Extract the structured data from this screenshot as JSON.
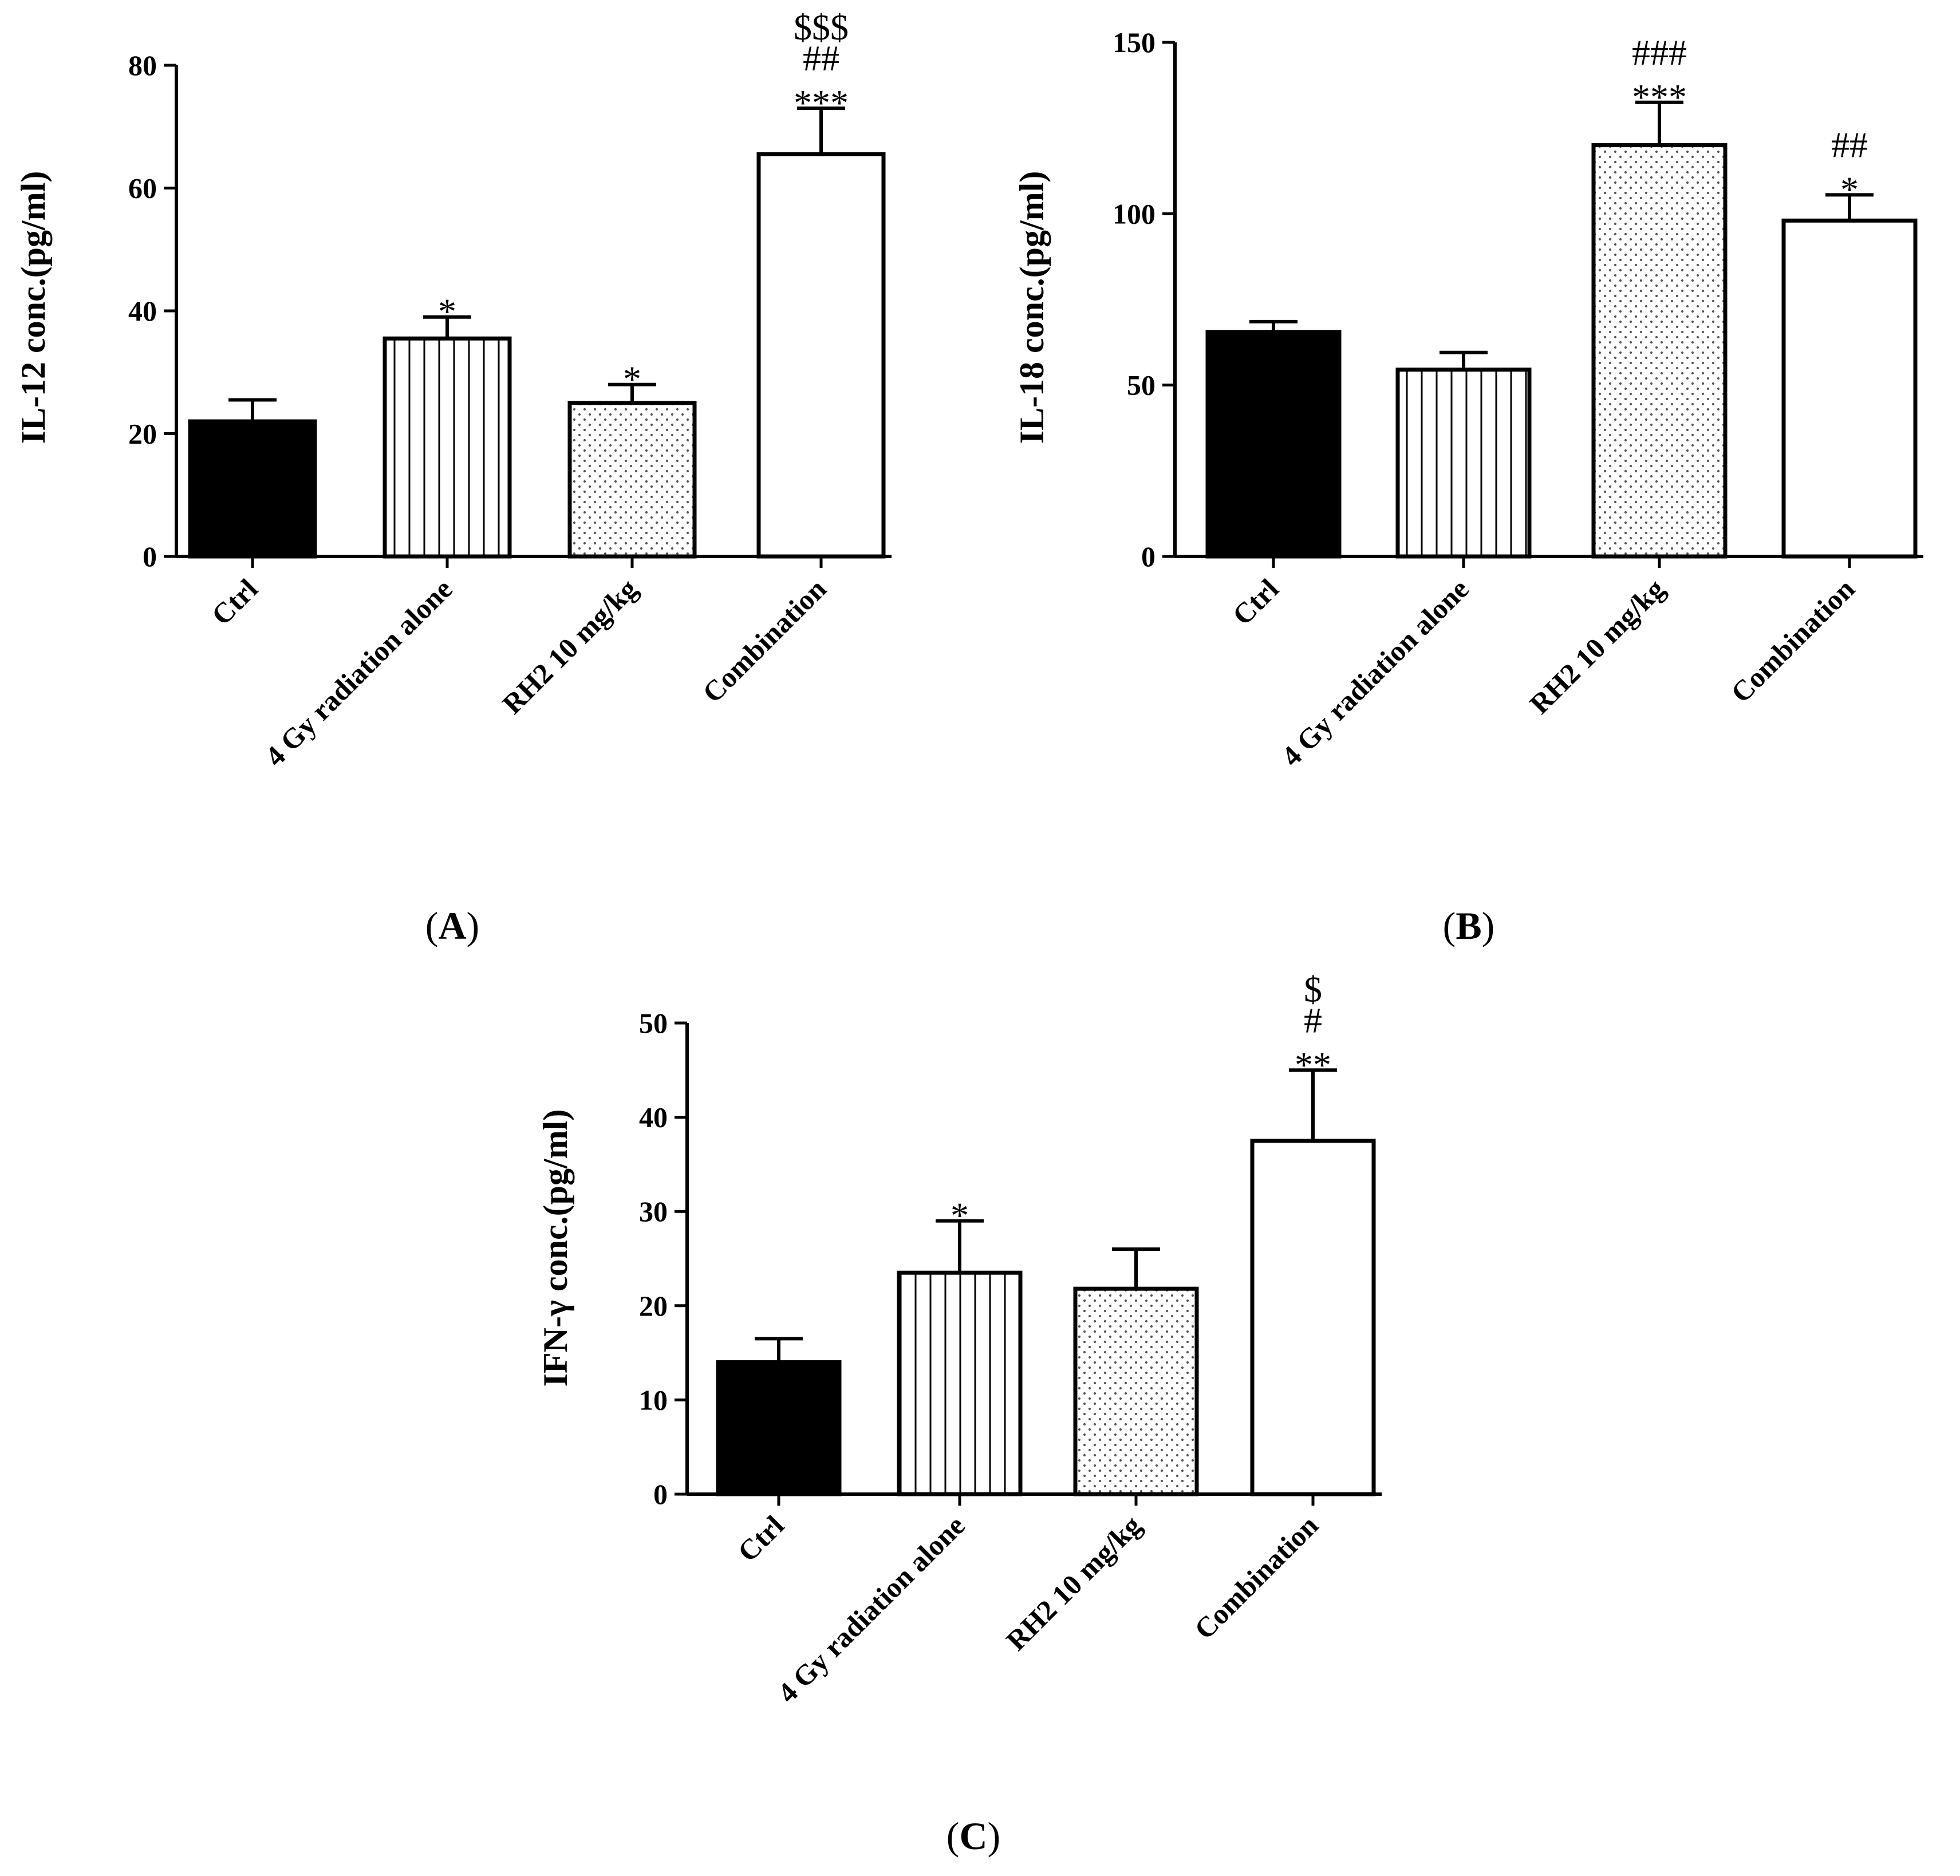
{
  "colors": {
    "axis": "#000000",
    "bar_solid": "#000000",
    "bar_outline": "#000000",
    "background": "#ffffff",
    "dots": "#555555"
  },
  "chart_data": [
    {
      "panel": "A",
      "type": "bar",
      "categories": [
        "Ctrl",
        "4 Gy radiation alone",
        "RH2 10 mg/kg",
        "Combination"
      ],
      "fills": [
        "solid",
        "vertical-stripes",
        "dots",
        "white"
      ],
      "values": [
        22,
        35.5,
        25,
        65.5
      ],
      "errors": [
        3.5,
        3.5,
        3,
        7.5
      ],
      "annotations": [
        [],
        [
          "*"
        ],
        [
          "*"
        ],
        [
          "***",
          "##",
          "$$$"
        ]
      ],
      "ylabel": "IL-12 conc.(pg/ml)",
      "ylim": [
        0,
        80
      ],
      "yticks": [
        0,
        20,
        40,
        60,
        80
      ]
    },
    {
      "panel": "B",
      "type": "bar",
      "categories": [
        "Ctrl",
        "4 Gy radiation alone",
        "RH2 10 mg/kg",
        "Combination"
      ],
      "fills": [
        "solid",
        "vertical-stripes",
        "dots",
        "white"
      ],
      "values": [
        65.5,
        54.5,
        120,
        98
      ],
      "errors": [
        3,
        5,
        12.5,
        7.5
      ],
      "annotations": [
        [],
        [],
        [
          "***",
          "###"
        ],
        [
          "*",
          "##"
        ]
      ],
      "ylabel": "IL-18 conc.(pg/ml)",
      "ylim": [
        0,
        150
      ],
      "yticks": [
        0,
        50,
        100,
        150
      ]
    },
    {
      "panel": "C",
      "type": "bar",
      "categories": [
        "Ctrl",
        "4 Gy radiation alone",
        "RH2 10 mg/kg",
        "Combination"
      ],
      "fills": [
        "solid",
        "vertical-stripes",
        "dots",
        "white"
      ],
      "values": [
        14,
        23.5,
        21.8,
        37.5
      ],
      "errors": [
        2.5,
        5.5,
        4.2,
        7.5
      ],
      "annotations": [
        [],
        [
          "*"
        ],
        [],
        [
          "**",
          "#",
          "$"
        ]
      ],
      "ylabel": "IFN-γ conc.(pg/ml)",
      "ylim": [
        0,
        50
      ],
      "yticks": [
        0,
        10,
        20,
        30,
        40,
        50
      ]
    }
  ]
}
